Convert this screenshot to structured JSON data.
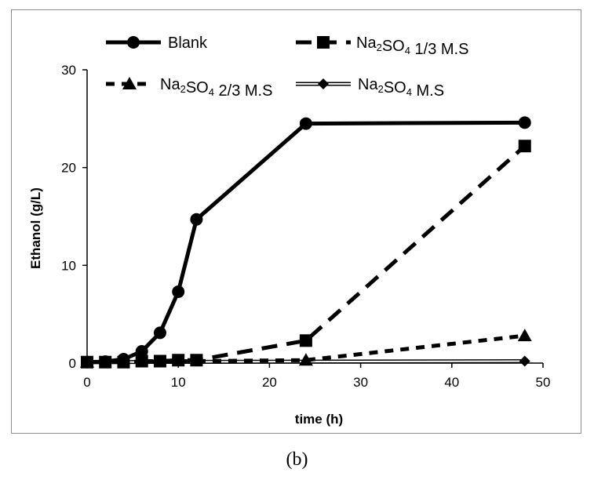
{
  "caption": "(b)",
  "chart_data": {
    "type": "line",
    "xlabel": "time (h)",
    "ylabel": "Ethanol (g/L)",
    "xlim": [
      0,
      50
    ],
    "ylim": [
      0,
      30
    ],
    "xticks": [
      "0",
      "10",
      "20",
      "30",
      "40",
      "50"
    ],
    "yticks": [
      "0",
      "10",
      "20",
      "30"
    ],
    "grid": false,
    "legend_position": "top",
    "series": [
      {
        "name": "Blank",
        "legend_main": "Blank",
        "legend_sub": "",
        "legend_tail": "",
        "line": "solid",
        "marker": "circle",
        "x": [
          0,
          2,
          4,
          6,
          8,
          10,
          12,
          24,
          48
        ],
        "y": [
          0.1,
          0.15,
          0.4,
          1.2,
          3.1,
          7.3,
          14.7,
          24.5,
          24.6
        ]
      },
      {
        "name": "Na2SO4 1/3 M.S",
        "legend_main": "Na",
        "legend_sub": "2",
        "legend_mid": "SO",
        "legend_sub2": "4",
        "legend_tail": "  1/3  M.S",
        "line": "dashed",
        "marker": "square",
        "x": [
          0,
          2,
          4,
          6,
          8,
          10,
          12,
          24,
          48
        ],
        "y": [
          0.1,
          0.1,
          0.1,
          0.2,
          0.2,
          0.3,
          0.3,
          2.3,
          22.2
        ]
      },
      {
        "name": "Na2SO4 2/3 M.S",
        "legend_main": "Na",
        "legend_sub": "2",
        "legend_mid": "SO",
        "legend_sub2": "4",
        "legend_tail": "  2/3  M.S",
        "line": "short-dashed",
        "marker": "triangle",
        "x": [
          0,
          24,
          48
        ],
        "y": [
          0.1,
          0.3,
          2.8
        ]
      },
      {
        "name": "Na2SO4 M.S",
        "legend_main": "Na",
        "legend_sub": "2",
        "legend_mid": "SO",
        "legend_sub2": "4",
        "legend_tail": "  M.S",
        "line": "double",
        "marker": "diamond",
        "x": [
          0,
          48
        ],
        "y": [
          0.1,
          0.2
        ]
      }
    ]
  }
}
